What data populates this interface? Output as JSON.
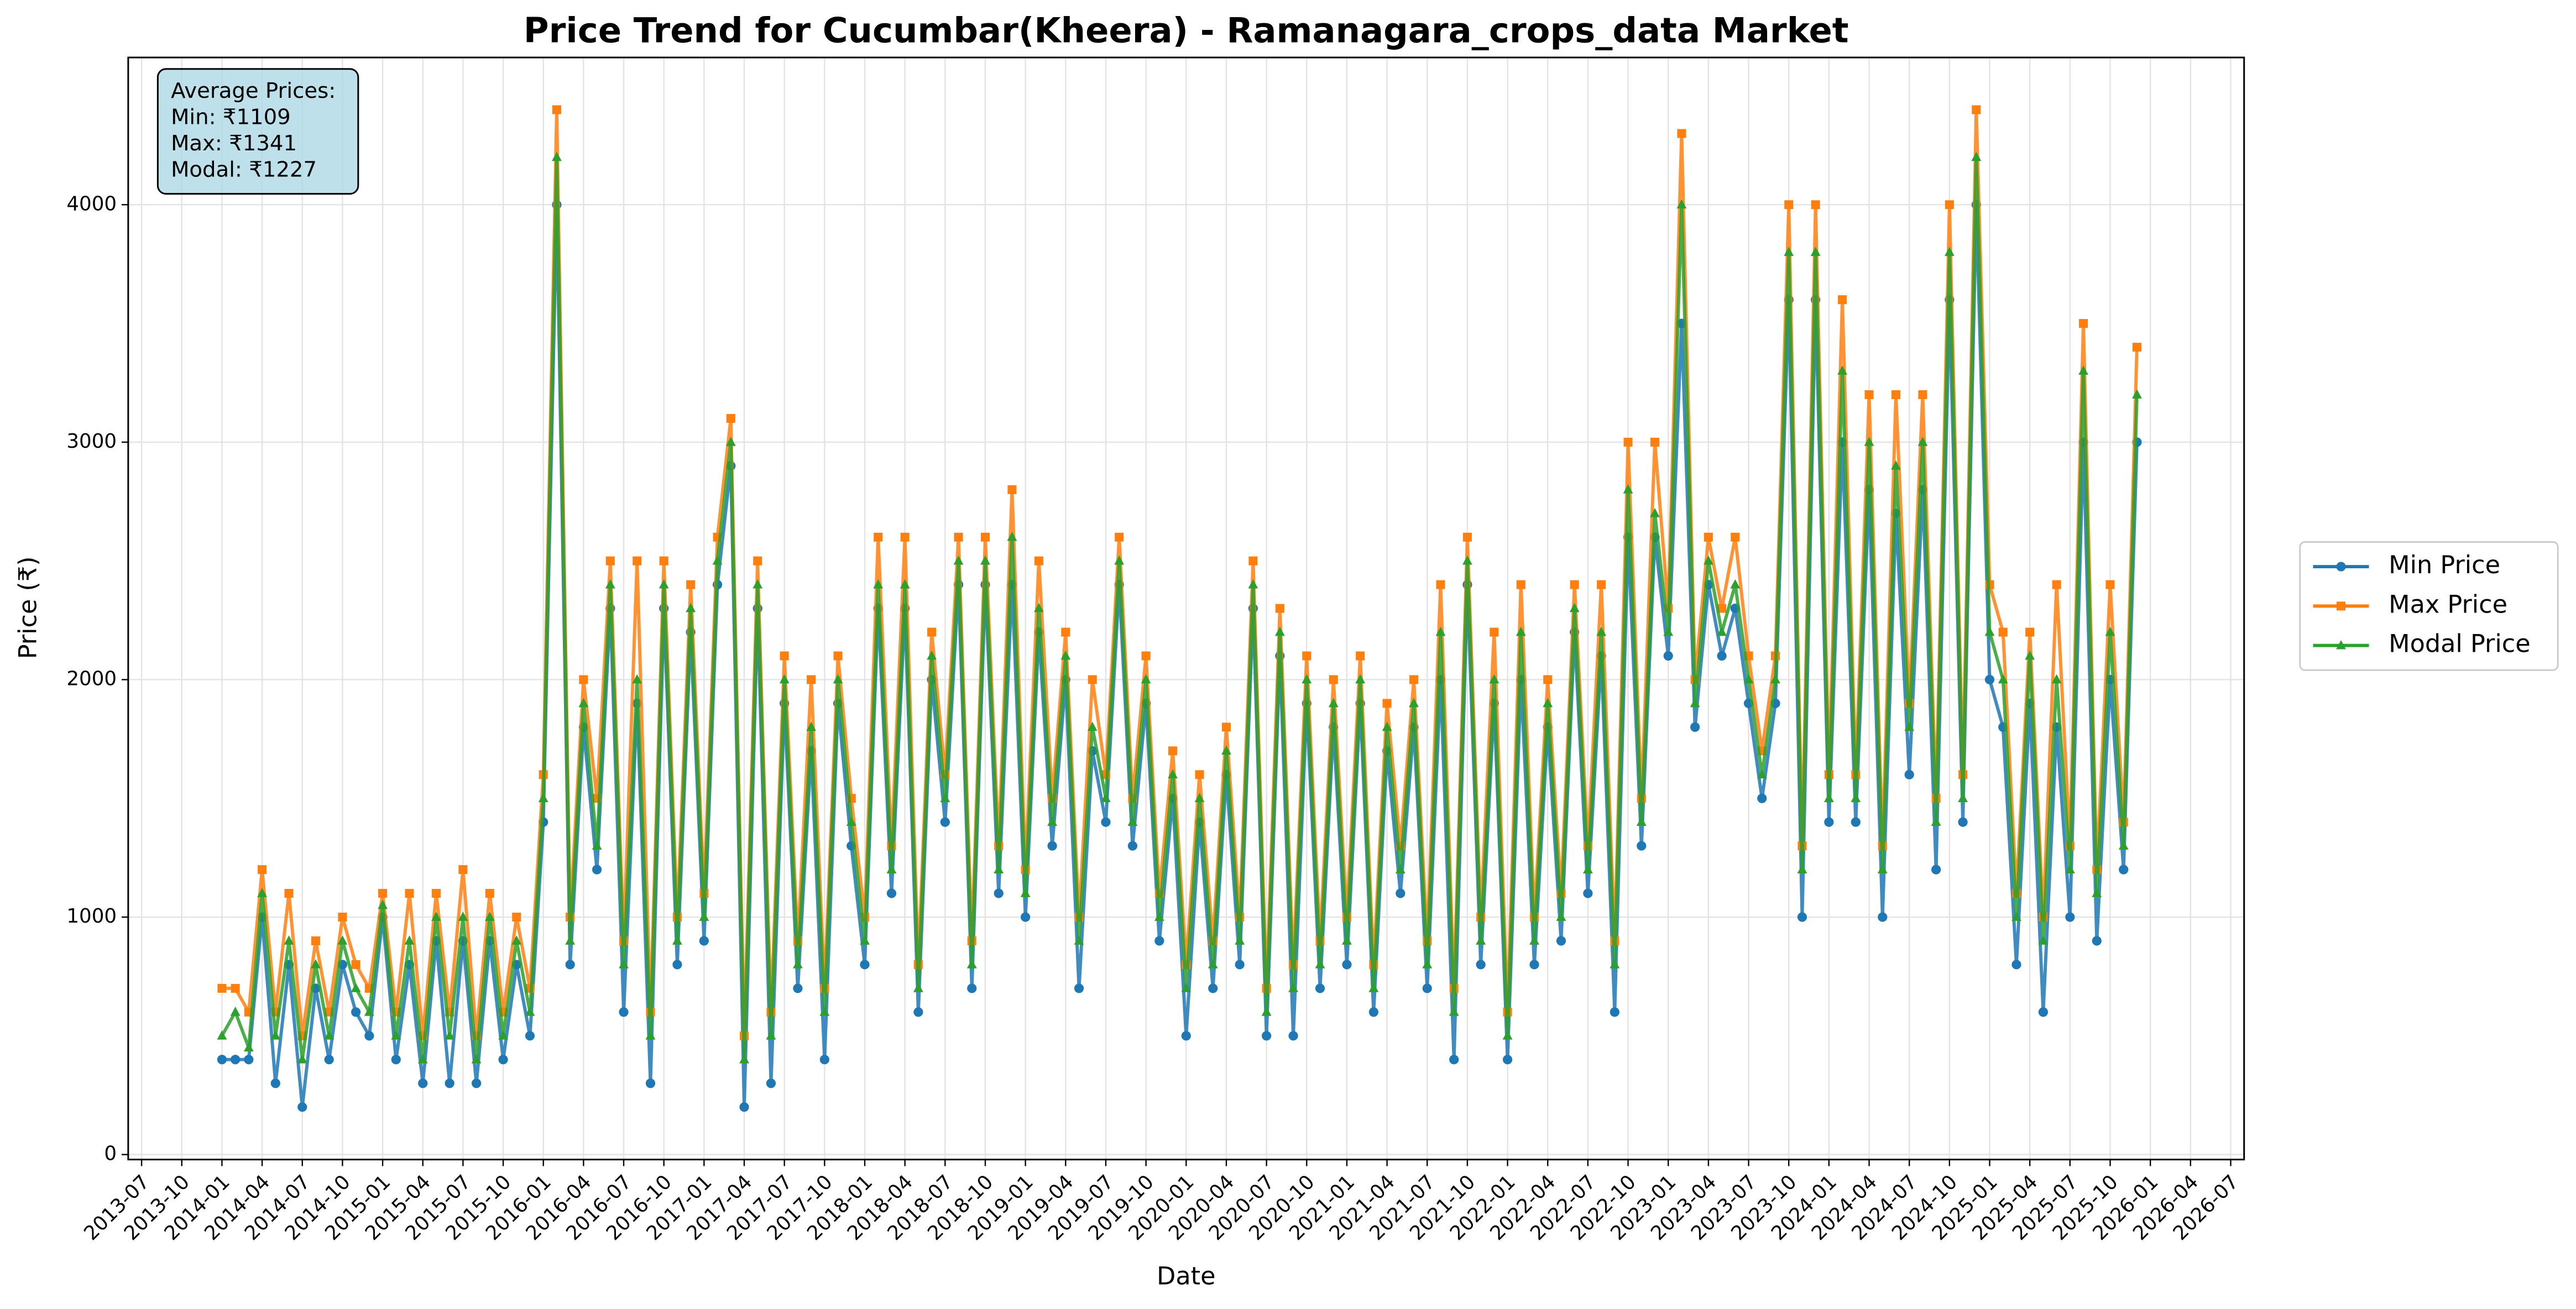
{
  "chart_data": {
    "type": "line",
    "title": "Price Trend for Cucumbar(Kheera) - Ramanagara_crops_data Market",
    "x_label": "Date",
    "y_label": "Price (₹)",
    "annotation": [
      "Average Prices:",
      "Min: ₹1109",
      "Max: ₹1341",
      "Modal: ₹1227"
    ],
    "xlim": [
      "2013-06",
      "2026-08"
    ],
    "ylim": [
      -21,
      4620
    ],
    "yticks": [
      0,
      1000,
      2000,
      3000,
      4000
    ],
    "xticks": [
      "2013-07",
      "2013-10",
      "2014-01",
      "2014-04",
      "2014-07",
      "2014-10",
      "2015-01",
      "2015-04",
      "2015-07",
      "2015-10",
      "2016-01",
      "2016-04",
      "2016-07",
      "2016-10",
      "2017-01",
      "2017-04",
      "2017-07",
      "2017-10",
      "2018-01",
      "2018-04",
      "2018-07",
      "2018-10",
      "2019-01",
      "2019-04",
      "2019-07",
      "2019-10",
      "2020-01",
      "2020-04",
      "2020-07",
      "2020-10",
      "2021-01",
      "2021-04",
      "2021-07",
      "2021-10",
      "2022-01",
      "2022-04",
      "2022-07",
      "2022-10",
      "2023-01",
      "2023-04",
      "2023-07",
      "2023-10",
      "2024-01",
      "2024-04",
      "2024-07",
      "2024-10",
      "2025-01",
      "2025-04",
      "2025-07",
      "2025-10",
      "2026-01",
      "2026-04",
      "2026-07"
    ],
    "grid": true,
    "legend": "outside-right",
    "x": [
      "2014-01",
      "2014-02",
      "2014-03",
      "2014-04",
      "2014-05",
      "2014-06",
      "2014-07",
      "2014-08",
      "2014-09",
      "2014-10",
      "2014-11",
      "2014-12",
      "2015-01",
      "2015-02",
      "2015-03",
      "2015-04",
      "2015-05",
      "2015-06",
      "2015-07",
      "2015-08",
      "2015-09",
      "2015-10",
      "2015-11",
      "2015-12",
      "2016-01",
      "2016-02",
      "2016-03",
      "2016-04",
      "2016-05",
      "2016-06",
      "2016-07",
      "2016-08",
      "2016-09",
      "2016-10",
      "2016-11",
      "2016-12",
      "2017-01",
      "2017-02",
      "2017-03",
      "2017-04",
      "2017-05",
      "2017-06",
      "2017-07",
      "2017-08",
      "2017-09",
      "2017-10",
      "2017-11",
      "2017-12",
      "2018-01",
      "2018-02",
      "2018-03",
      "2018-04",
      "2018-05",
      "2018-06",
      "2018-07",
      "2018-08",
      "2018-09",
      "2018-10",
      "2018-11",
      "2018-12",
      "2019-01",
      "2019-02",
      "2019-03",
      "2019-04",
      "2019-05",
      "2019-06",
      "2019-07",
      "2019-08",
      "2019-09",
      "2019-10",
      "2019-11",
      "2019-12",
      "2020-01",
      "2020-02",
      "2020-03",
      "2020-04",
      "2020-05",
      "2020-06",
      "2020-07",
      "2020-08",
      "2020-09",
      "2020-10",
      "2020-11",
      "2020-12",
      "2021-01",
      "2021-02",
      "2021-03",
      "2021-04",
      "2021-05",
      "2021-06",
      "2021-07",
      "2021-08",
      "2021-09",
      "2021-10",
      "2021-11",
      "2021-12",
      "2022-01",
      "2022-02",
      "2022-03",
      "2022-04",
      "2022-05",
      "2022-06",
      "2022-07",
      "2022-08",
      "2022-09",
      "2022-10",
      "2022-11",
      "2022-12",
      "2023-01",
      "2023-02",
      "2023-03",
      "2023-04",
      "2023-05",
      "2023-06",
      "2023-07",
      "2023-08",
      "2023-09",
      "2023-10",
      "2023-11",
      "2023-12",
      "2024-01",
      "2024-02",
      "2024-03",
      "2024-04",
      "2024-05",
      "2024-06",
      "2024-07",
      "2024-08",
      "2024-09",
      "2024-10",
      "2024-11",
      "2024-12",
      "2025-01",
      "2025-02",
      "2025-03",
      "2025-04",
      "2025-05",
      "2025-06",
      "2025-07",
      "2025-08",
      "2025-09",
      "2025-10",
      "2025-11",
      "2025-12"
    ],
    "series": [
      {
        "name": "Min Price",
        "color": "#1f77b4",
        "marker": "circle",
        "values": [
          400,
          400,
          400,
          1000,
          300,
          800,
          200,
          700,
          400,
          800,
          600,
          500,
          1000,
          400,
          800,
          300,
          900,
          300,
          900,
          300,
          900,
          400,
          800,
          500,
          1400,
          4000,
          800,
          1800,
          1200,
          2300,
          600,
          1900,
          300,
          2300,
          800,
          2200,
          900,
          2400,
          2900,
          200,
          2300,
          300,
          1900,
          700,
          1700,
          400,
          1900,
          1300,
          800,
          2300,
          1100,
          2300,
          600,
          2000,
          1400,
          2400,
          700,
          2400,
          1100,
          2400,
          1000,
          2200,
          1300,
          2000,
          700,
          1700,
          1400,
          2400,
          1300,
          1900,
          900,
          1500,
          500,
          1400,
          700,
          1600,
          800,
          2300,
          500,
          2100,
          500,
          1900,
          700,
          1800,
          800,
          1900,
          600,
          1700,
          1100,
          1800,
          700,
          2000,
          400,
          2400,
          800,
          1900,
          400,
          2000,
          800,
          1800,
          900,
          2200,
          1100,
          2100,
          600,
          2600,
          1300,
          2600,
          2100,
          3500,
          1800,
          2400,
          2100,
          2300,
          1900,
          1500,
          1900,
          3600,
          1000,
          3600,
          1400,
          3000,
          1400,
          2800,
          1000,
          2700,
          1600,
          2800,
          1200,
          3600,
          1400,
          4000,
          2000,
          1800,
          800,
          1900,
          600,
          1800,
          1000,
          3000,
          900,
          2000,
          1200,
          3000
        ]
      },
      {
        "name": "Max Price",
        "color": "#ff7f0e",
        "marker": "square",
        "values": [
          700,
          700,
          600,
          1200,
          600,
          1100,
          500,
          900,
          600,
          1000,
          800,
          700,
          1100,
          600,
          1100,
          500,
          1100,
          600,
          1200,
          500,
          1100,
          600,
          1000,
          700,
          1600,
          4400,
          1000,
          2000,
          1500,
          2500,
          900,
          2500,
          600,
          2500,
          1000,
          2400,
          1100,
          2600,
          3100,
          500,
          2500,
          600,
          2100,
          900,
          2000,
          700,
          2100,
          1500,
          1000,
          2600,
          1300,
          2600,
          800,
          2200,
          1600,
          2600,
          900,
          2600,
          1300,
          2800,
          1200,
          2500,
          1500,
          2200,
          1000,
          2000,
          1600,
          2600,
          1500,
          2100,
          1100,
          1700,
          800,
          1600,
          900,
          1800,
          1000,
          2500,
          700,
          2300,
          800,
          2100,
          900,
          2000,
          1000,
          2100,
          800,
          1900,
          1300,
          2000,
          900,
          2400,
          700,
          2600,
          1000,
          2200,
          600,
          2400,
          1000,
          2000,
          1100,
          2400,
          1300,
          2400,
          900,
          3000,
          1500,
          3000,
          2300,
          4300,
          2000,
          2600,
          2300,
          2600,
          2100,
          1700,
          2100,
          4000,
          1300,
          4000,
          1600,
          3600,
          1600,
          3200,
          1300,
          3200,
          1900,
          3200,
          1500,
          4000,
          1600,
          4400,
          2400,
          2200,
          1100,
          2200,
          1000,
          2400,
          1300,
          3500,
          1200,
          2400,
          1400,
          3400
        ]
      },
      {
        "name": "Modal Price",
        "color": "#2ca02c",
        "marker": "triangle",
        "values": [
          500,
          600,
          450,
          1100,
          500,
          900,
          400,
          800,
          500,
          900,
          700,
          600,
          1050,
          500,
          900,
          400,
          1000,
          500,
          1000,
          400,
          1000,
          500,
          900,
          600,
          1500,
          4200,
          900,
          1900,
          1300,
          2400,
          800,
          2000,
          500,
          2400,
          900,
          2300,
          1000,
          2500,
          3000,
          400,
          2400,
          500,
          2000,
          800,
          1800,
          600,
          2000,
          1400,
          900,
          2400,
          1200,
          2400,
          700,
          2100,
          1500,
          2500,
          800,
          2500,
          1200,
          2600,
          1100,
          2300,
          1400,
          2100,
          900,
          1800,
          1500,
          2500,
          1400,
          2000,
          1000,
          1600,
          700,
          1500,
          800,
          1700,
          900,
          2400,
          600,
          2200,
          700,
          2000,
          800,
          1900,
          900,
          2000,
          700,
          1800,
          1200,
          1900,
          800,
          2200,
          600,
          2500,
          900,
          2000,
          500,
          2200,
          900,
          1900,
          1000,
          2300,
          1200,
          2200,
          800,
          2800,
          1400,
          2700,
          2200,
          4000,
          1900,
          2500,
          2200,
          2400,
          2000,
          1600,
          2000,
          3800,
          1200,
          3800,
          1500,
          3300,
          1500,
          3000,
          1200,
          2900,
          1800,
          3000,
          1400,
          3800,
          1500,
          4200,
          2200,
          2000,
          1000,
          2100,
          900,
          2000,
          1200,
          3300,
          1100,
          2200,
          1300,
          3200
        ]
      }
    ]
  }
}
